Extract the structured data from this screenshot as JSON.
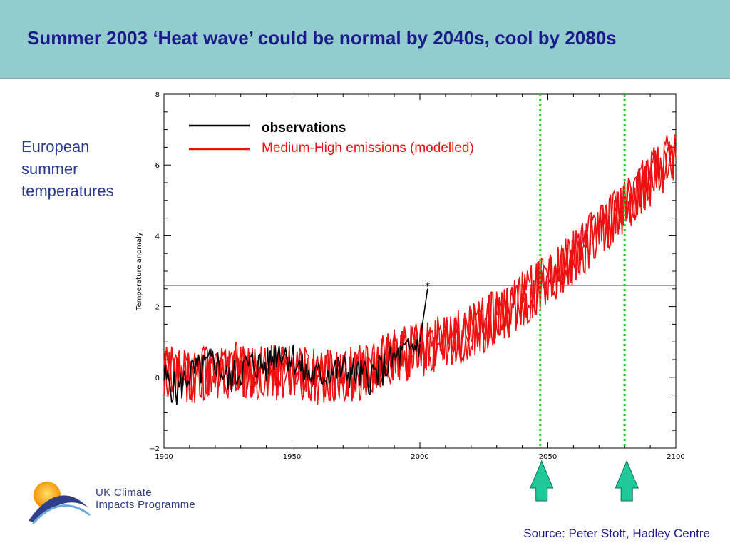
{
  "header": {
    "title": "Summer 2003 ‘Heat wave’ could be normal by 2040s, cool by 2080s",
    "background": "#93cccc",
    "title_color": "#1b1b8c"
  },
  "side_label": {
    "lines": [
      "European",
      "summer",
      "temperatures"
    ]
  },
  "source": "Source: Peter Stott, Hadley Centre",
  "logo": {
    "line1": "UK Climate",
    "line2": "Impacts Programme",
    "icon": "sun-wave-logo"
  },
  "chart_data": {
    "type": "line",
    "title": "",
    "xlabel": "",
    "ylabel": "Temperature anomaly",
    "xlim": [
      1900,
      2100
    ],
    "ylim": [
      -2,
      8
    ],
    "xticks": [
      1900,
      1950,
      2000,
      2050,
      2100
    ],
    "yticks": [
      -2,
      0,
      2,
      4,
      6,
      8
    ],
    "grid": false,
    "legend": "top-left",
    "reference_line": {
      "y": 2.6,
      "marker_year": 2003,
      "marker": "*"
    },
    "vertical_markers": [
      {
        "x": 2047,
        "color": "#22cc22",
        "style": "dotted"
      },
      {
        "x": 2080,
        "color": "#22cc22",
        "style": "dotted"
      }
    ],
    "series": [
      {
        "name": "observations",
        "color": "#000000",
        "x": [
          1900,
          1905,
          1910,
          1915,
          1920,
          1925,
          1930,
          1935,
          1940,
          1945,
          1950,
          1955,
          1960,
          1965,
          1970,
          1975,
          1980,
          1985,
          1990,
          1995,
          2000,
          2003
        ],
        "y": [
          0.0,
          -0.4,
          0.1,
          0.2,
          0.5,
          -0.1,
          0.2,
          0.4,
          0.3,
          0.8,
          0.6,
          0.1,
          0.0,
          0.2,
          0.2,
          0.1,
          0.0,
          0.2,
          0.5,
          0.7,
          1.0,
          2.5
        ]
      },
      {
        "name": "Medium-High emissions (modelled)",
        "color": "#ee1111",
        "x": [
          1900,
          1910,
          1920,
          1930,
          1940,
          1950,
          1960,
          1970,
          1980,
          1990,
          2000,
          2010,
          2020,
          2030,
          2040,
          2050,
          2060,
          2070,
          2080,
          2090,
          2100
        ],
        "y": [
          0.1,
          0.0,
          0.2,
          0.2,
          0.1,
          0.2,
          0.0,
          0.0,
          0.2,
          0.6,
          0.8,
          1.0,
          1.3,
          1.7,
          2.2,
          2.8,
          3.4,
          4.1,
          4.8,
          5.6,
          6.3
        ]
      }
    ]
  }
}
